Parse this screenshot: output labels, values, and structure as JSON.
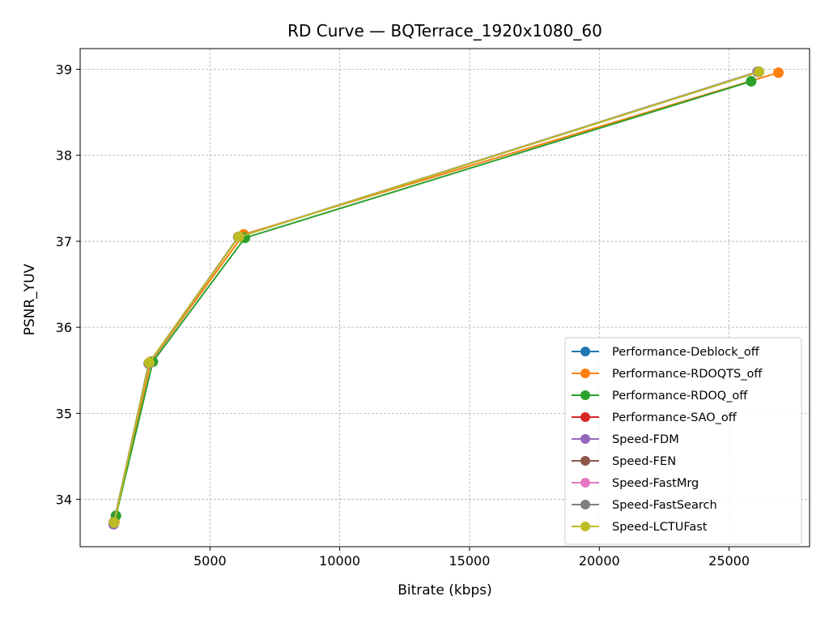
{
  "chart_data": {
    "type": "line",
    "title": "RD Curve — BQTerrace_1920x1080_60",
    "xlabel": "Bitrate (kbps)",
    "ylabel": "PSNR_YUV",
    "xlim": [
      0,
      28100
    ],
    "ylim": [
      33.45,
      39.24
    ],
    "xticks": [
      5000,
      10000,
      15000,
      20000,
      25000
    ],
    "yticks": [
      34,
      35,
      36,
      37,
      38,
      39
    ],
    "xtick_labels": [
      "5000",
      "10000",
      "15000",
      "20000",
      "25000"
    ],
    "ytick_labels": [
      "34",
      "35",
      "36",
      "37",
      "38",
      "39"
    ],
    "grid": true,
    "legend_position": "lower-right",
    "series": [
      {
        "name": "Performance-Deblock_off",
        "color": "#1f77b4",
        "x": [
          1300,
          2650,
          6100,
          26100
        ],
        "y": [
          33.72,
          35.58,
          37.05,
          38.97
        ]
      },
      {
        "name": "Performance-RDOQTS_off",
        "color": "#ff7f0e",
        "x": [
          1320,
          2720,
          6300,
          26900
        ],
        "y": [
          33.74,
          35.6,
          37.08,
          38.96
        ]
      },
      {
        "name": "Performance-RDOQ_off",
        "color": "#2ca02c",
        "x": [
          1380,
          2800,
          6350,
          25850
        ],
        "y": [
          33.81,
          35.6,
          37.04,
          38.86
        ]
      },
      {
        "name": "Performance-SAO_off",
        "color": "#d62728",
        "x": [
          1300,
          2650,
          6100,
          26150
        ],
        "y": [
          33.73,
          35.58,
          37.05,
          38.97
        ]
      },
      {
        "name": "Speed-FDM",
        "color": "#9467bd",
        "x": [
          1290,
          2640,
          6090,
          26100
        ],
        "y": [
          33.71,
          35.58,
          37.05,
          38.97
        ]
      },
      {
        "name": "Speed-FEN",
        "color": "#8c564b",
        "x": [
          1300,
          2650,
          6100,
          26150
        ],
        "y": [
          33.73,
          35.58,
          37.05,
          38.97
        ]
      },
      {
        "name": "Speed-FastMrg",
        "color": "#e377c2",
        "x": [
          1300,
          2660,
          6110,
          26150
        ],
        "y": [
          33.73,
          35.58,
          37.05,
          38.97
        ]
      },
      {
        "name": "Speed-FastSearch",
        "color": "#7f7f7f",
        "x": [
          1300,
          2650,
          6100,
          26150
        ],
        "y": [
          33.73,
          35.58,
          37.05,
          38.97
        ]
      },
      {
        "name": "Speed-LCTUFast",
        "color": "#bcbd22",
        "x": [
          1310,
          2660,
          6110,
          26150
        ],
        "y": [
          33.73,
          35.59,
          37.05,
          38.97
        ]
      }
    ]
  }
}
